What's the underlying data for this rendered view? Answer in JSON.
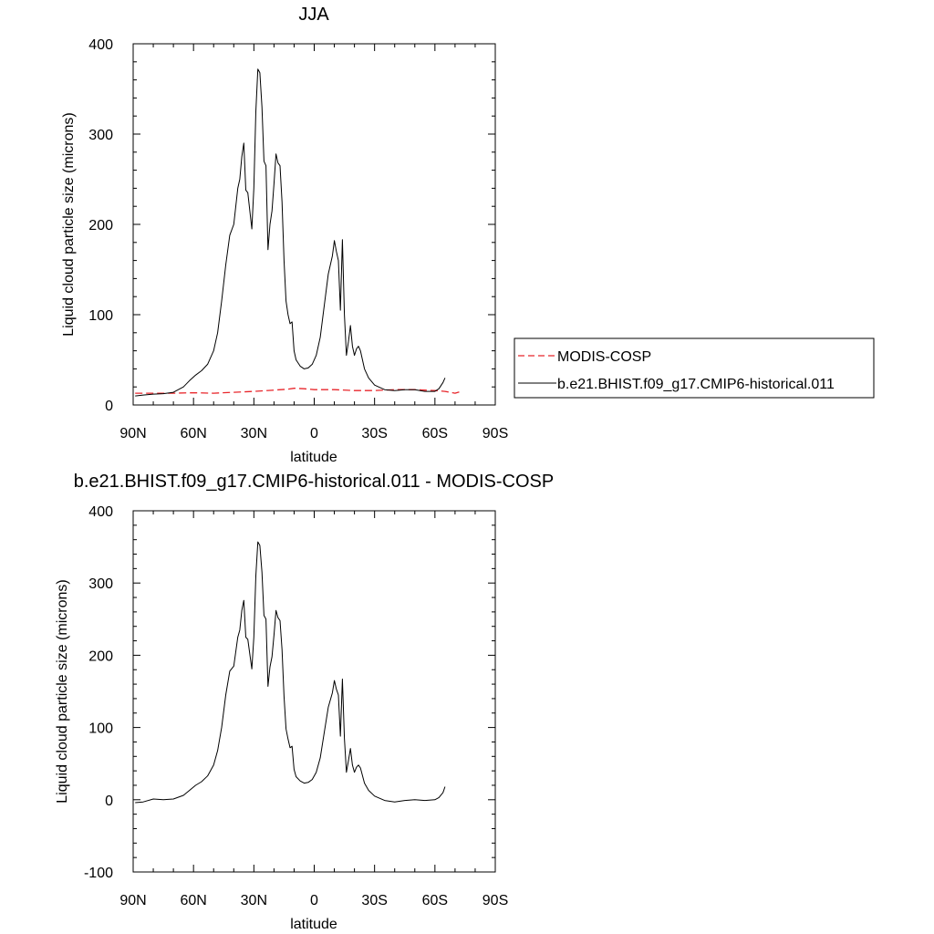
{
  "chart_data": [
    {
      "type": "line",
      "title": "JJA",
      "xlabel": "latitude",
      "ylabel": "Liquid cloud particle size (microns)",
      "xlim": [
        -90,
        90
      ],
      "ylim": [
        0,
        400
      ],
      "xticks": [
        -90,
        -60,
        -30,
        0,
        30,
        60,
        90
      ],
      "xtick_labels": [
        "90N",
        "60N",
        "30N",
        "0",
        "30S",
        "60S",
        "90S"
      ],
      "yticks": [
        0,
        100,
        200,
        300,
        400
      ],
      "ytick_labels": [
        "0",
        "100",
        "200",
        "300",
        "400"
      ],
      "legend": {
        "placement": "right",
        "entries": [
          "MODIS-COSP",
          "b.e21.BHIST.f09_g17.CMIP6-historical.011"
        ]
      },
      "series": [
        {
          "name": "MODIS-COSP",
          "color": "#e8262b",
          "dash": "dashed",
          "points": [
            [
              -89,
              13
            ],
            [
              -80,
              13
            ],
            [
              -70,
              13
            ],
            [
              -60,
              13.5
            ],
            [
              -50,
              13
            ],
            [
              -40,
              14
            ],
            [
              -30,
              15
            ],
            [
              -20,
              16.5
            ],
            [
              -13,
              17.5
            ],
            [
              -10,
              18.5
            ],
            [
              -5,
              18
            ],
            [
              0,
              17
            ],
            [
              10,
              17
            ],
            [
              20,
              16
            ],
            [
              30,
              16
            ],
            [
              40,
              17
            ],
            [
              50,
              17
            ],
            [
              60,
              16
            ],
            [
              65,
              15
            ],
            [
              70,
              13
            ],
            [
              73,
              15
            ]
          ]
        },
        {
          "name": "b.e21.BHIST.f09_g17.CMIP6-historical.011",
          "color": "#000000",
          "dash": "solid",
          "points": [
            [
              -89,
              10
            ],
            [
              -85,
              11
            ],
            [
              -80,
              12
            ],
            [
              -75,
              12.5
            ],
            [
              -70,
              14
            ],
            [
              -65,
              20
            ],
            [
              -62,
              27
            ],
            [
              -59,
              33
            ],
            [
              -56,
              38
            ],
            [
              -53,
              45
            ],
            [
              -50,
              60
            ],
            [
              -48,
              80
            ],
            [
              -46,
              115
            ],
            [
              -44,
              155
            ],
            [
              -42,
              188
            ],
            [
              -40,
              200
            ],
            [
              -38,
              240
            ],
            [
              -37,
              250
            ],
            [
              -36,
              275
            ],
            [
              -35,
              290
            ],
            [
              -34,
              238
            ],
            [
              -33,
              235
            ],
            [
              -31,
              195
            ],
            [
              -30,
              240
            ],
            [
              -29,
              325
            ],
            [
              -28,
              372
            ],
            [
              -27,
              368
            ],
            [
              -26,
              330
            ],
            [
              -25,
              270
            ],
            [
              -24,
              265
            ],
            [
              -23,
              172
            ],
            [
              -22,
              200
            ],
            [
              -21,
              215
            ],
            [
              -20,
              245
            ],
            [
              -19,
              278
            ],
            [
              -18,
              268
            ],
            [
              -17,
              265
            ],
            [
              -16,
              225
            ],
            [
              -15,
              160
            ],
            [
              -14,
              115
            ],
            [
              -13,
              100
            ],
            [
              -12,
              90
            ],
            [
              -11,
              92
            ],
            [
              -10,
              60
            ],
            [
              -9,
              50
            ],
            [
              -7,
              43
            ],
            [
              -5,
              40
            ],
            [
              -3,
              41
            ],
            [
              -1,
              45
            ],
            [
              1,
              55
            ],
            [
              3,
              75
            ],
            [
              5,
              110
            ],
            [
              7,
              145
            ],
            [
              9,
              165
            ],
            [
              10,
              182
            ],
            [
              11,
              170
            ],
            [
              12,
              160
            ],
            [
              13,
              105
            ],
            [
              14,
              183
            ],
            [
              15,
              100
            ],
            [
              16,
              55
            ],
            [
              17,
              70
            ],
            [
              18,
              88
            ],
            [
              19,
              65
            ],
            [
              20,
              55
            ],
            [
              21,
              62
            ],
            [
              22,
              65
            ],
            [
              23,
              60
            ],
            [
              25,
              40
            ],
            [
              27,
              30
            ],
            [
              30,
              22
            ],
            [
              35,
              17
            ],
            [
              40,
              16
            ],
            [
              45,
              17
            ],
            [
              50,
              17
            ],
            [
              55,
              15
            ],
            [
              60,
              15
            ],
            [
              62,
              18
            ],
            [
              64,
              25
            ],
            [
              65,
              30
            ]
          ]
        }
      ]
    },
    {
      "type": "line",
      "title": "b.e21.BHIST.f09_g17.CMIP6-historical.011 - MODIS-COSP",
      "xlabel": "latitude",
      "ylabel": "Liquid cloud particle size (microns)",
      "xlim": [
        -90,
        90
      ],
      "ylim": [
        -100,
        400
      ],
      "xticks": [
        -90,
        -60,
        -30,
        0,
        30,
        60,
        90
      ],
      "xtick_labels": [
        "90N",
        "60N",
        "30N",
        "0",
        "30S",
        "60S",
        "90S"
      ],
      "yticks": [
        -100,
        0,
        100,
        200,
        300,
        400
      ],
      "ytick_labels": [
        "-100",
        "0",
        "100",
        "200",
        "300",
        "400"
      ],
      "series": [
        {
          "color": "#000000",
          "dash": "solid",
          "points": [
            [
              -89,
              -4
            ],
            [
              -85,
              -3
            ],
            [
              -80,
              1
            ],
            [
              -75,
              0
            ],
            [
              -70,
              1
            ],
            [
              -65,
              6
            ],
            [
              -62,
              13
            ],
            [
              -59,
              20
            ],
            [
              -56,
              25
            ],
            [
              -53,
              33
            ],
            [
              -50,
              48
            ],
            [
              -48,
              68
            ],
            [
              -46,
              100
            ],
            [
              -44,
              145
            ],
            [
              -42,
              178
            ],
            [
              -40,
              185
            ],
            [
              -38,
              225
            ],
            [
              -37,
              235
            ],
            [
              -36,
              262
            ],
            [
              -35,
              276
            ],
            [
              -34,
              225
            ],
            [
              -33,
              222
            ],
            [
              -31,
              181
            ],
            [
              -30,
              225
            ],
            [
              -29,
              310
            ],
            [
              -28,
              357
            ],
            [
              -27,
              352
            ],
            [
              -26,
              315
            ],
            [
              -25,
              255
            ],
            [
              -24,
              250
            ],
            [
              -23,
              157
            ],
            [
              -22,
              184
            ],
            [
              -21,
              198
            ],
            [
              -20,
              228
            ],
            [
              -19,
              262
            ],
            [
              -18,
              252
            ],
            [
              -17,
              248
            ],
            [
              -16,
              208
            ],
            [
              -15,
              143
            ],
            [
              -14,
              98
            ],
            [
              -13,
              84
            ],
            [
              -12,
              72
            ],
            [
              -11,
              74
            ],
            [
              -10,
              42
            ],
            [
              -9,
              32
            ],
            [
              -7,
              26
            ],
            [
              -5,
              23
            ],
            [
              -3,
              24
            ],
            [
              -1,
              28
            ],
            [
              1,
              38
            ],
            [
              3,
              58
            ],
            [
              5,
              93
            ],
            [
              7,
              128
            ],
            [
              9,
              148
            ],
            [
              10,
              165
            ],
            [
              11,
              153
            ],
            [
              12,
              145
            ],
            [
              13,
              88
            ],
            [
              14,
              167
            ],
            [
              15,
              85
            ],
            [
              16,
              38
            ],
            [
              17,
              54
            ],
            [
              18,
              71
            ],
            [
              19,
              48
            ],
            [
              20,
              38
            ],
            [
              21,
              45
            ],
            [
              22,
              48
            ],
            [
              23,
              44
            ],
            [
              25,
              23
            ],
            [
              27,
              13
            ],
            [
              30,
              5
            ],
            [
              35,
              -1
            ],
            [
              40,
              -3
            ],
            [
              45,
              -1
            ],
            [
              50,
              0
            ],
            [
              55,
              -1
            ],
            [
              60,
              0
            ],
            [
              62,
              3
            ],
            [
              64,
              10
            ],
            [
              65,
              18
            ]
          ]
        }
      ]
    }
  ]
}
